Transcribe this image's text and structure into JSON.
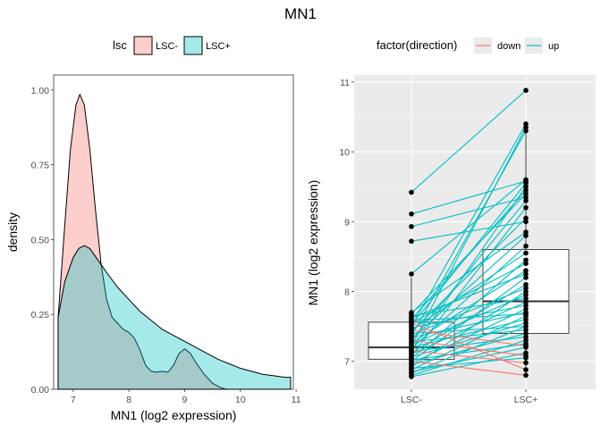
{
  "title": "MN1",
  "chart_data": [
    {
      "type": "area",
      "subtype": "density",
      "xlabel": "MN1 (log2 expression)",
      "ylabel": "density",
      "xlim": [
        6.65,
        10.95
      ],
      "ylim": [
        0,
        1.05
      ],
      "x_ticks": [
        7,
        8,
        9,
        10,
        11
      ],
      "y_ticks": [
        0.0,
        0.25,
        0.5,
        0.75,
        1.0
      ],
      "y_tick_labels": [
        "0.00",
        "0.25",
        "0.50",
        "0.75",
        "1.00"
      ],
      "grid": false,
      "legend": {
        "title": "lsc",
        "position": "top",
        "entries": [
          "LSC-",
          "LSC+"
        ]
      },
      "series": [
        {
          "name": "LSC-",
          "color": "#F8766D",
          "points": [
            [
              6.73,
              0.24
            ],
            [
              6.85,
              0.55
            ],
            [
              6.95,
              0.8
            ],
            [
              7.05,
              0.95
            ],
            [
              7.12,
              0.985
            ],
            [
              7.2,
              0.95
            ],
            [
              7.3,
              0.8
            ],
            [
              7.4,
              0.6
            ],
            [
              7.5,
              0.42
            ],
            [
              7.6,
              0.3
            ],
            [
              7.7,
              0.24
            ],
            [
              7.8,
              0.22
            ],
            [
              7.9,
              0.2
            ],
            [
              8.0,
              0.19
            ],
            [
              8.1,
              0.17
            ],
            [
              8.2,
              0.13
            ],
            [
              8.3,
              0.08
            ],
            [
              8.4,
              0.06
            ],
            [
              8.5,
              0.057
            ],
            [
              8.6,
              0.06
            ],
            [
              8.7,
              0.057
            ],
            [
              8.8,
              0.08
            ],
            [
              8.9,
              0.12
            ],
            [
              9.0,
              0.135
            ],
            [
              9.1,
              0.12
            ],
            [
              9.2,
              0.09
            ],
            [
              9.35,
              0.05
            ],
            [
              9.5,
              0.02
            ],
            [
              9.65,
              0.005
            ],
            [
              9.75,
              0.0
            ]
          ]
        },
        {
          "name": "LSC+",
          "color": "#00BFC4",
          "points": [
            [
              6.73,
              0.24
            ],
            [
              6.85,
              0.36
            ],
            [
              7.0,
              0.44
            ],
            [
              7.1,
              0.47
            ],
            [
              7.2,
              0.48
            ],
            [
              7.3,
              0.47
            ],
            [
              7.45,
              0.43
            ],
            [
              7.6,
              0.39
            ],
            [
              7.8,
              0.34
            ],
            [
              8.0,
              0.3
            ],
            [
              8.2,
              0.26
            ],
            [
              8.4,
              0.23
            ],
            [
              8.6,
              0.2
            ],
            [
              8.8,
              0.18
            ],
            [
              9.0,
              0.16
            ],
            [
              9.2,
              0.14
            ],
            [
              9.4,
              0.12
            ],
            [
              9.6,
              0.1
            ],
            [
              9.8,
              0.085
            ],
            [
              10.0,
              0.07
            ],
            [
              10.2,
              0.06
            ],
            [
              10.4,
              0.05
            ],
            [
              10.6,
              0.045
            ],
            [
              10.8,
              0.04
            ],
            [
              10.9,
              0.04
            ]
          ]
        }
      ]
    },
    {
      "type": "box",
      "subtype": "paired-lines",
      "xlabel": "",
      "ylabel": "MN1 (log2 expression)",
      "categories": [
        "LSC-",
        "LSC+"
      ],
      "ylim": [
        6.6,
        11.1
      ],
      "y_ticks": [
        7,
        8,
        9,
        10,
        11
      ],
      "grid": true,
      "legend": {
        "title": "factor(direction)",
        "position": "top",
        "entries": [
          "down",
          "up"
        ]
      },
      "direction_colors": {
        "down": "#F8766D",
        "up": "#00BFC4"
      },
      "boxplot": [
        {
          "category": "LSC-",
          "min": 6.78,
          "q1": 7.03,
          "median": 7.2,
          "q3": 7.56,
          "max": 8.2
        },
        {
          "category": "LSC+",
          "min": 6.78,
          "q1": 7.4,
          "median": 7.86,
          "q3": 8.6,
          "max": 10.4
        }
      ],
      "outliers": [
        {
          "category": "LSC-",
          "values": [
            8.25,
            8.72,
            8.93,
            9.11,
            9.42
          ]
        },
        {
          "category": "LSC+",
          "values": [
            10.88
          ]
        }
      ],
      "pairs": [
        [
          6.78,
          7.12,
          "up"
        ],
        [
          6.8,
          7.3,
          "up"
        ],
        [
          6.83,
          7.5,
          "up"
        ],
        [
          6.85,
          7.2,
          "up"
        ],
        [
          6.88,
          7.65,
          "up"
        ],
        [
          6.9,
          7.05,
          "up"
        ],
        [
          6.92,
          8.0,
          "up"
        ],
        [
          6.95,
          7.4,
          "up"
        ],
        [
          6.97,
          7.75,
          "up"
        ],
        [
          7.0,
          8.2,
          "up"
        ],
        [
          7.02,
          7.25,
          "up"
        ],
        [
          7.04,
          8.45,
          "up"
        ],
        [
          7.06,
          7.55,
          "up"
        ],
        [
          7.08,
          9.2,
          "up"
        ],
        [
          7.1,
          7.85,
          "up"
        ],
        [
          7.12,
          8.1,
          "up"
        ],
        [
          7.14,
          7.35,
          "up"
        ],
        [
          7.16,
          9.5,
          "up"
        ],
        [
          7.18,
          8.65,
          "up"
        ],
        [
          7.2,
          7.6,
          "up"
        ],
        [
          7.22,
          10.35,
          "up"
        ],
        [
          7.24,
          7.95,
          "up"
        ],
        [
          7.26,
          8.3,
          "up"
        ],
        [
          7.28,
          7.45,
          "up"
        ],
        [
          7.3,
          9.3,
          "up"
        ],
        [
          7.32,
          8.8,
          "up"
        ],
        [
          7.34,
          7.7,
          "up"
        ],
        [
          7.36,
          10.3,
          "up"
        ],
        [
          7.38,
          8.05,
          "up"
        ],
        [
          7.4,
          7.5,
          "up"
        ],
        [
          7.42,
          9.05,
          "up"
        ],
        [
          7.45,
          8.55,
          "up"
        ],
        [
          7.48,
          7.8,
          "up"
        ],
        [
          7.5,
          10.4,
          "up"
        ],
        [
          7.52,
          9.55,
          "up"
        ],
        [
          7.55,
          8.4,
          "up"
        ],
        [
          7.58,
          7.68,
          "up"
        ],
        [
          7.6,
          9.45,
          "up"
        ],
        [
          7.62,
          8.25,
          "up"
        ],
        [
          7.65,
          7.9,
          "up"
        ],
        [
          7.68,
          9.4,
          "up"
        ],
        [
          7.7,
          8.85,
          "up"
        ],
        [
          8.25,
          9.6,
          "up"
        ],
        [
          8.72,
          9.0,
          "up"
        ],
        [
          8.93,
          9.35,
          "up"
        ],
        [
          9.11,
          9.58,
          "up"
        ],
        [
          9.42,
          10.88,
          "up"
        ],
        [
          7.55,
          6.88,
          "down"
        ],
        [
          7.3,
          7.08,
          "down"
        ],
        [
          7.45,
          7.22,
          "down"
        ],
        [
          7.15,
          6.98,
          "down"
        ],
        [
          7.0,
          6.8,
          "down"
        ]
      ]
    }
  ]
}
